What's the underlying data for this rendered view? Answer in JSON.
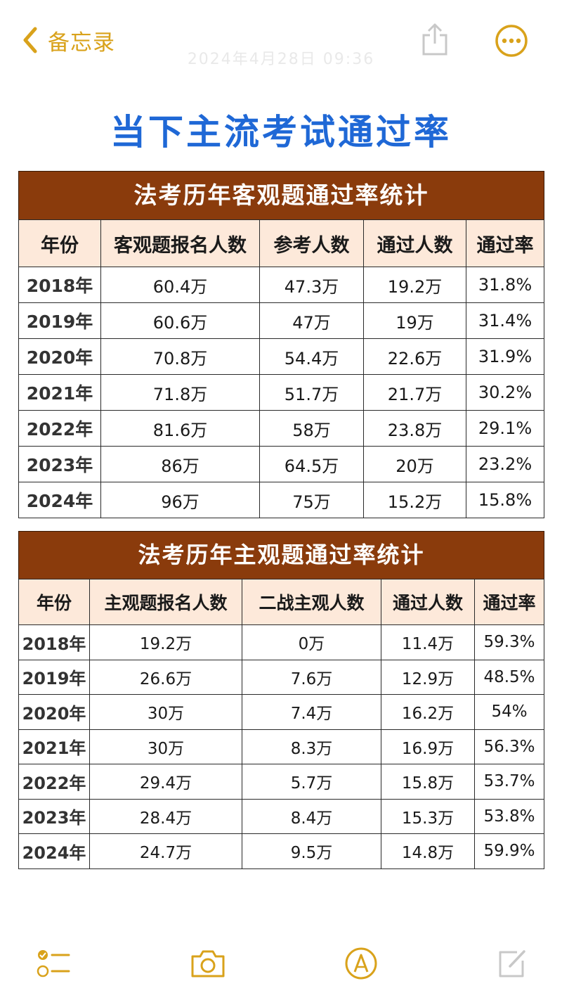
{
  "nav": {
    "back_label": "备忘录",
    "date_text": "2024年4月28日 09:36",
    "accent_color": "#d9a21b",
    "icons": [
      "chevron-left-icon",
      "share-icon",
      "more-icon"
    ]
  },
  "title": "当下主流考试通过率",
  "objective_table": {
    "caption": "法考历年客观题通过率统计",
    "headers": [
      "年份",
      "客观题报名人数",
      "参考人数",
      "通过人数",
      "通过率"
    ],
    "rows": [
      [
        "2018年",
        "60.4万",
        "47.3万",
        "19.2万",
        "31.8%"
      ],
      [
        "2019年",
        "60.6万",
        "47万",
        "19万",
        "31.4%"
      ],
      [
        "2020年",
        "70.8万",
        "54.4万",
        "22.6万",
        "31.9%"
      ],
      [
        "2021年",
        "71.8万",
        "51.7万",
        "21.7万",
        "30.2%"
      ],
      [
        "2022年",
        "81.6万",
        "58万",
        "23.8万",
        "29.1%"
      ],
      [
        "2023年",
        "86万",
        "64.5万",
        "20万",
        "23.2%"
      ],
      [
        "2024年",
        "96万",
        "75万",
        "15.2万",
        "15.8%"
      ]
    ]
  },
  "subjective_table": {
    "caption": "法考历年主观题通过率统计",
    "headers": [
      "年份",
      "主观题报名人数",
      "二战主观人数",
      "通过人数",
      "通过率"
    ],
    "rows": [
      [
        "2018年",
        "19.2万",
        "0万",
        "11.4万",
        "59.3%"
      ],
      [
        "2019年",
        "26.6万",
        "7.6万",
        "12.9万",
        "48.5%"
      ],
      [
        "2020年",
        "30万",
        "7.4万",
        "16.2万",
        "54%"
      ],
      [
        "2021年",
        "30万",
        "8.3万",
        "16.9万",
        "56.3%"
      ],
      [
        "2022年",
        "29.4万",
        "5.7万",
        "15.8万",
        "53.7%"
      ],
      [
        "2023年",
        "28.4万",
        "8.4万",
        "15.3万",
        "53.8%"
      ],
      [
        "2024年",
        "24.7万",
        "9.5万",
        "14.8万",
        "59.9%"
      ]
    ]
  },
  "toolbar": {
    "icons": [
      "checklist-icon",
      "camera-icon",
      "markup-icon",
      "compose-icon"
    ]
  },
  "colors": {
    "title": "#1f68d6",
    "caption_bg": "#8a3b0c",
    "header_bg": "#fde9da"
  }
}
